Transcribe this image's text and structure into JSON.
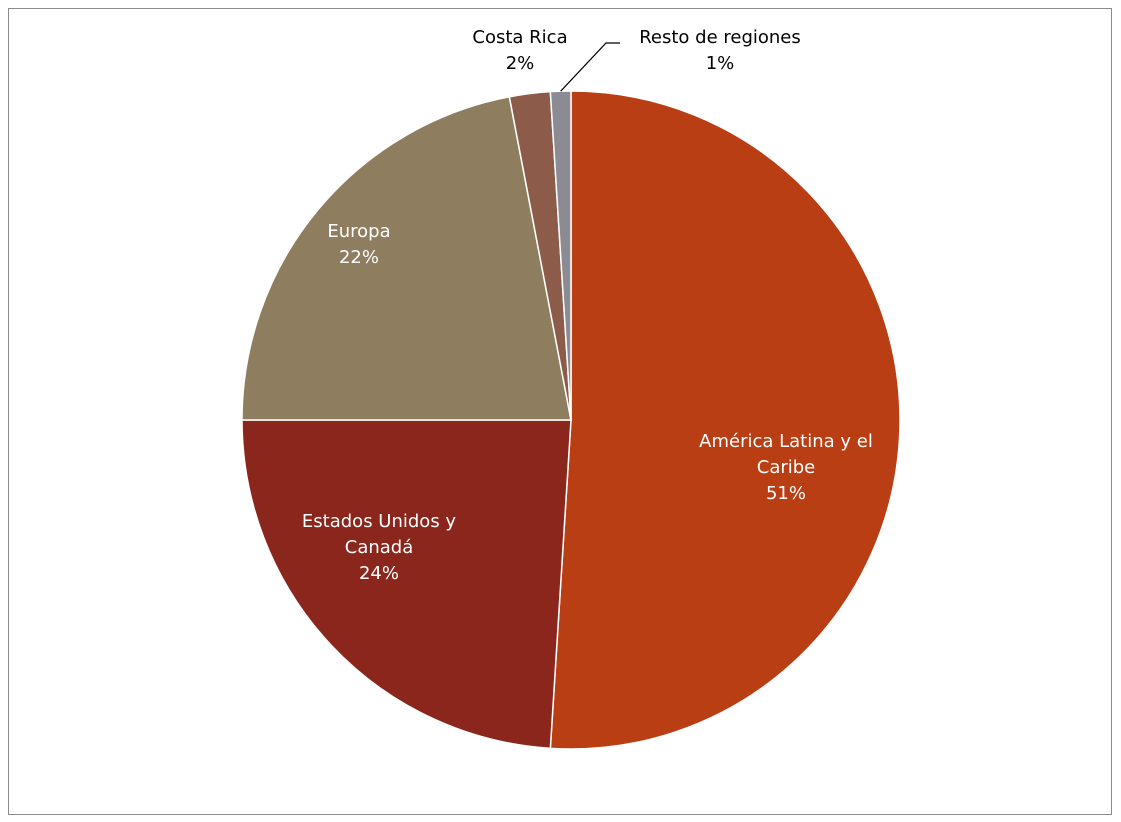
{
  "chart_data": {
    "type": "pie",
    "title": "",
    "start_angle_deg": 0,
    "direction": "clockwise",
    "legend": "none",
    "slices": [
      {
        "name": "América Latina y el Caribe",
        "label_lines": [
          "América Latina y el",
          "Caribe"
        ],
        "value": 51,
        "value_label": "51%",
        "color": "#BA3E13",
        "label_color": "#ffffff"
      },
      {
        "name": "Estados Unidos y Canadá",
        "label_lines": [
          "Estados Unidos y",
          "Canadá"
        ],
        "value": 24,
        "value_label": "24%",
        "color": "#8A261C",
        "label_color": "#ffffff"
      },
      {
        "name": "Europa",
        "label_lines": [
          "Europa"
        ],
        "value": 22,
        "value_label": "22%",
        "color": "#8E7D5F",
        "label_color": "#ffffff"
      },
      {
        "name": "Costa Rica",
        "label_lines": [
          "Costa Rica"
        ],
        "value": 2,
        "value_label": "2%",
        "color": "#8D5B4A",
        "label_color": "#000000"
      },
      {
        "name": "Resto de regiones",
        "label_lines": [
          "Resto de regiones"
        ],
        "value": 1,
        "value_label": "1%",
        "color": "#8C8A93",
        "label_color": "#000000"
      }
    ]
  }
}
